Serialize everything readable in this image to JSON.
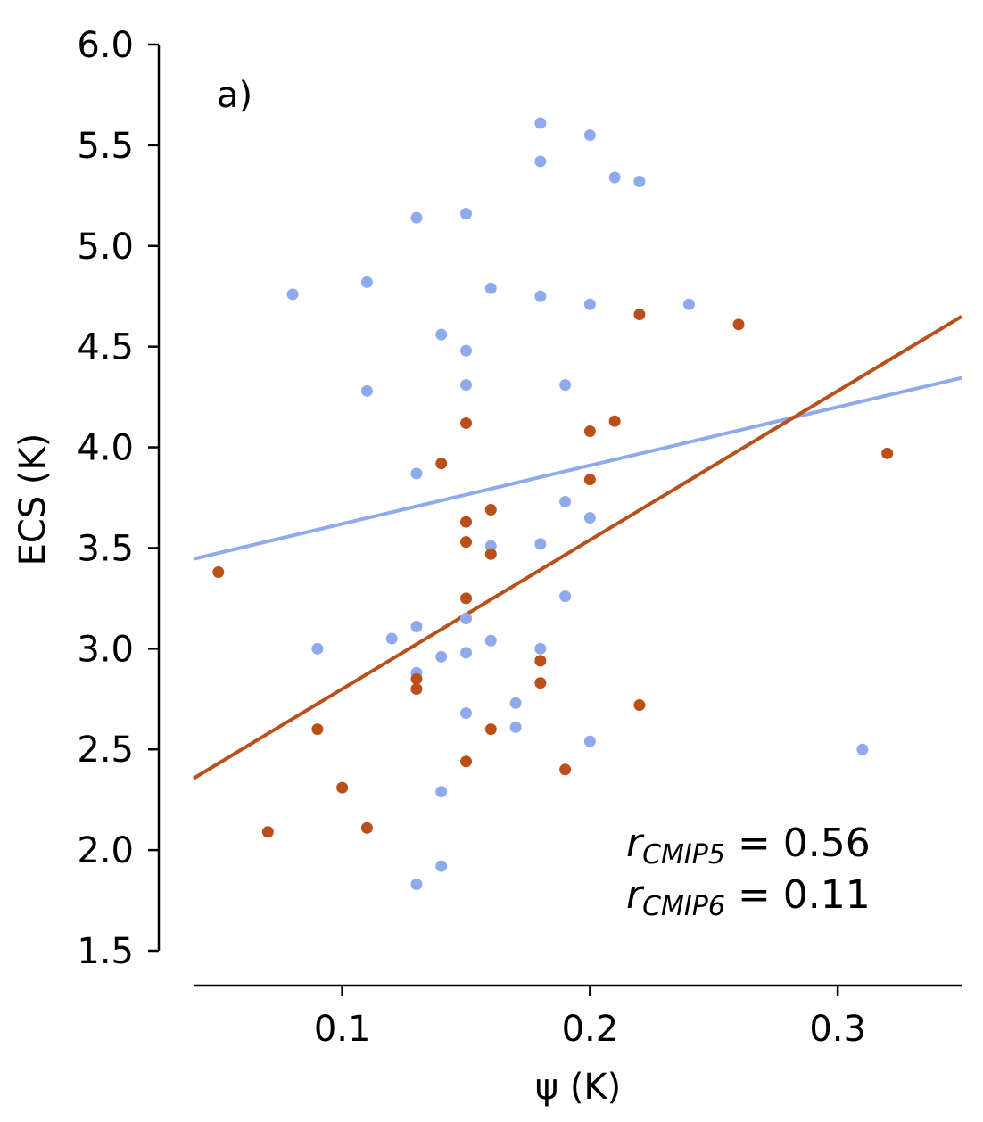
{
  "chart_data": {
    "type": "scatter",
    "panel_label": "a)",
    "xlabel": "ψ (K)",
    "ylabel": "ECS (K)",
    "xlim": [
      0.04,
      0.35
    ],
    "ylim": [
      1.5,
      6.0
    ],
    "x_ticks": [
      {
        "value": 0.1,
        "label": "0.1"
      },
      {
        "value": 0.2,
        "label": "0.2"
      },
      {
        "value": 0.3,
        "label": "0.3"
      }
    ],
    "y_ticks": [
      {
        "value": 1.5,
        "label": "1.5"
      },
      {
        "value": 2.0,
        "label": "2.0"
      },
      {
        "value": 2.5,
        "label": "2.5"
      },
      {
        "value": 3.0,
        "label": "3.0"
      },
      {
        "value": 3.5,
        "label": "3.5"
      },
      {
        "value": 4.0,
        "label": "4.0"
      },
      {
        "value": 4.5,
        "label": "4.5"
      },
      {
        "value": 5.0,
        "label": "5.0"
      },
      {
        "value": 5.5,
        "label": "5.5"
      },
      {
        "value": 6.0,
        "label": "6.0"
      }
    ],
    "series": [
      {
        "name": "CMIP6",
        "color": "#8faaec",
        "points": [
          [
            0.18,
            5.61
          ],
          [
            0.2,
            5.55
          ],
          [
            0.18,
            5.42
          ],
          [
            0.21,
            5.34
          ],
          [
            0.22,
            5.32
          ],
          [
            0.13,
            5.14
          ],
          [
            0.15,
            5.16
          ],
          [
            0.08,
            4.76
          ],
          [
            0.11,
            4.82
          ],
          [
            0.16,
            4.79
          ],
          [
            0.18,
            4.75
          ],
          [
            0.2,
            4.71
          ],
          [
            0.24,
            4.71
          ],
          [
            0.14,
            4.56
          ],
          [
            0.15,
            4.48
          ],
          [
            0.11,
            4.28
          ],
          [
            0.15,
            4.31
          ],
          [
            0.19,
            4.31
          ],
          [
            0.13,
            3.87
          ],
          [
            0.19,
            3.73
          ],
          [
            0.2,
            3.65
          ],
          [
            0.16,
            3.51
          ],
          [
            0.18,
            3.52
          ],
          [
            0.19,
            3.26
          ],
          [
            0.15,
            3.15
          ],
          [
            0.13,
            3.11
          ],
          [
            0.12,
            3.05
          ],
          [
            0.16,
            3.04
          ],
          [
            0.09,
            3.0
          ],
          [
            0.15,
            2.98
          ],
          [
            0.18,
            3.0
          ],
          [
            0.14,
            2.96
          ],
          [
            0.13,
            2.88
          ],
          [
            0.17,
            2.73
          ],
          [
            0.15,
            2.68
          ],
          [
            0.17,
            2.61
          ],
          [
            0.2,
            2.54
          ],
          [
            0.31,
            2.5
          ],
          [
            0.14,
            2.29
          ],
          [
            0.14,
            1.92
          ],
          [
            0.13,
            1.83
          ]
        ],
        "fit": {
          "slope": 2.9,
          "intercept": 3.33
        }
      },
      {
        "name": "CMIP5",
        "color": "#bb4f1a",
        "points": [
          [
            0.22,
            4.66
          ],
          [
            0.26,
            4.61
          ],
          [
            0.15,
            4.12
          ],
          [
            0.21,
            4.13
          ],
          [
            0.2,
            4.08
          ],
          [
            0.14,
            3.92
          ],
          [
            0.32,
            3.97
          ],
          [
            0.2,
            3.84
          ],
          [
            0.16,
            3.69
          ],
          [
            0.15,
            3.63
          ],
          [
            0.15,
            3.53
          ],
          [
            0.16,
            3.47
          ],
          [
            0.05,
            3.38
          ],
          [
            0.15,
            3.25
          ],
          [
            0.18,
            2.94
          ],
          [
            0.13,
            2.85
          ],
          [
            0.13,
            2.8
          ],
          [
            0.18,
            2.83
          ],
          [
            0.22,
            2.72
          ],
          [
            0.09,
            2.6
          ],
          [
            0.16,
            2.6
          ],
          [
            0.15,
            2.44
          ],
          [
            0.19,
            2.4
          ],
          [
            0.1,
            2.31
          ],
          [
            0.11,
            2.11
          ],
          [
            0.07,
            2.09
          ]
        ],
        "fit": {
          "slope": 7.4,
          "intercept": 2.06
        }
      }
    ],
    "annotations": [
      {
        "symbol": "r",
        "subscript": "CMIP5",
        "text": " = 0.56"
      },
      {
        "symbol": "r",
        "subscript": "CMIP6",
        "text": " = 0.11"
      }
    ]
  }
}
